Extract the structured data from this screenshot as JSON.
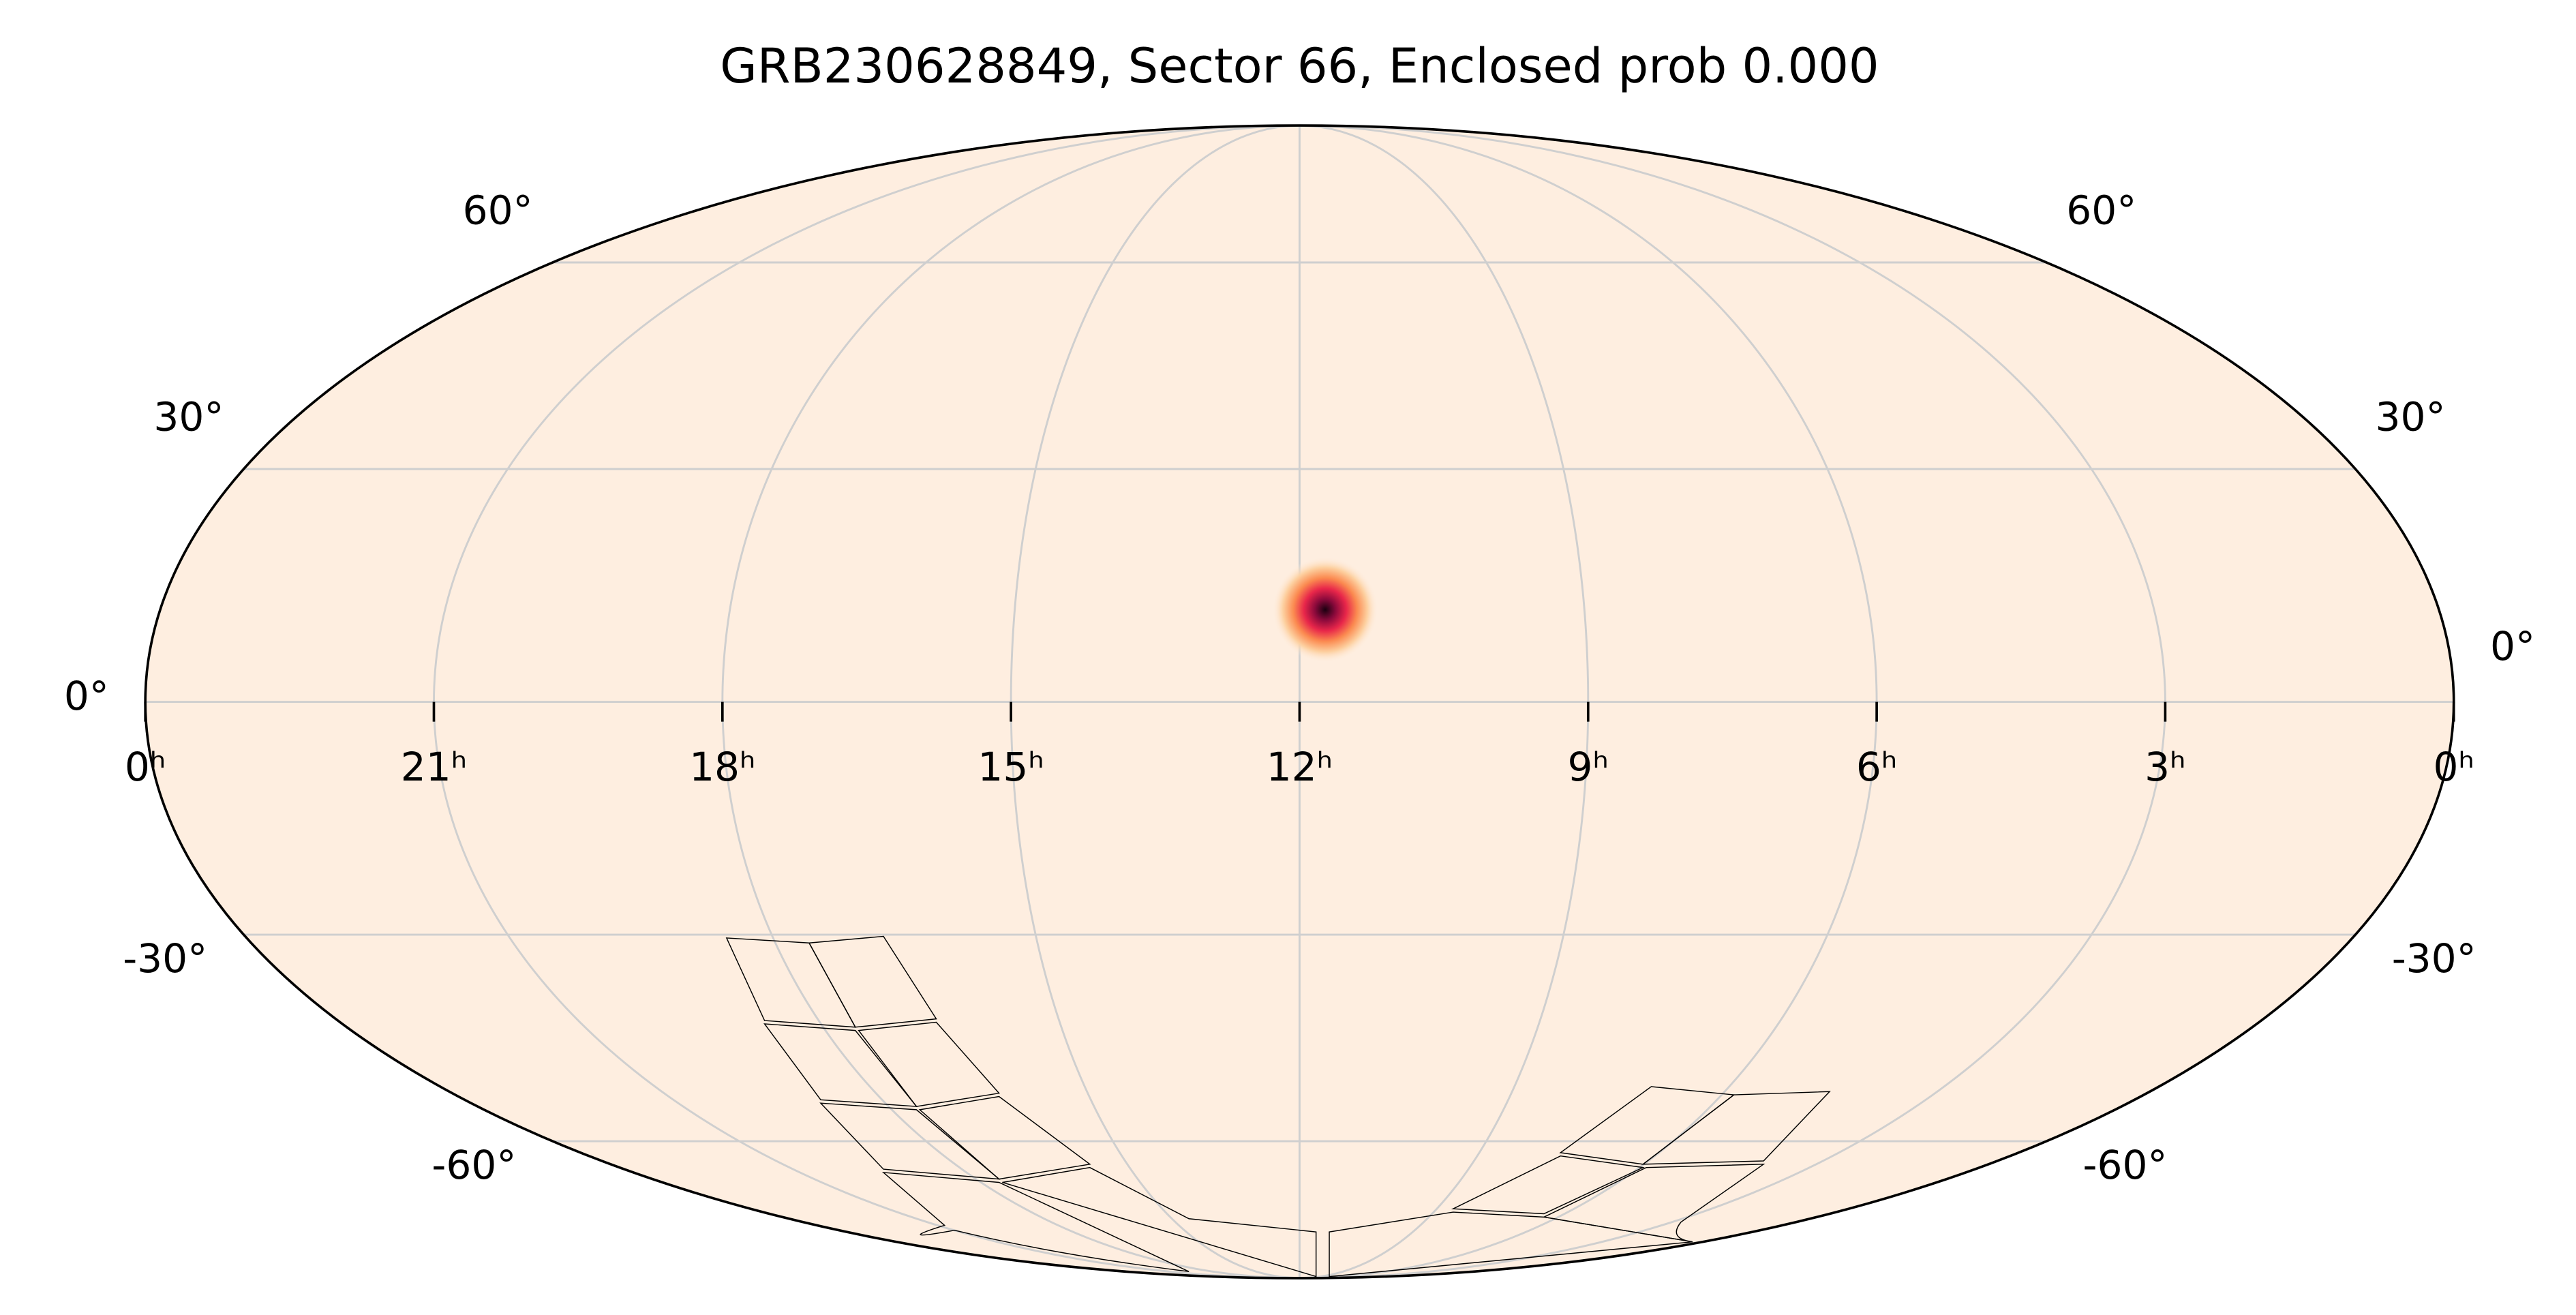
{
  "title": "GRB230628849, Sector 66, Enclosed prob 0.000",
  "map": {
    "projection": "mollweide",
    "grid": true,
    "ra_ticks": [
      {
        "value": 24,
        "label": "0ʰ"
      },
      {
        "value": 21,
        "label": "21ʰ"
      },
      {
        "value": 18,
        "label": "18ʰ"
      },
      {
        "value": 15,
        "label": "15ʰ"
      },
      {
        "value": 12,
        "label": "12ʰ"
      },
      {
        "value": 9,
        "label": "9ʰ"
      },
      {
        "value": 6,
        "label": "6ʰ"
      },
      {
        "value": 3,
        "label": "3ʰ"
      },
      {
        "value": 0,
        "label": "0ʰ"
      }
    ],
    "dec_ticks": [
      {
        "value": 60,
        "label": "60°"
      },
      {
        "value": 30,
        "label": "30°"
      },
      {
        "value": 0,
        "label": "0°"
      },
      {
        "value": -30,
        "label": "-30°"
      },
      {
        "value": -60,
        "label": "-60°"
      }
    ],
    "source": {
      "ra_hours": 11.73,
      "dec": 11.7
    }
  }
}
